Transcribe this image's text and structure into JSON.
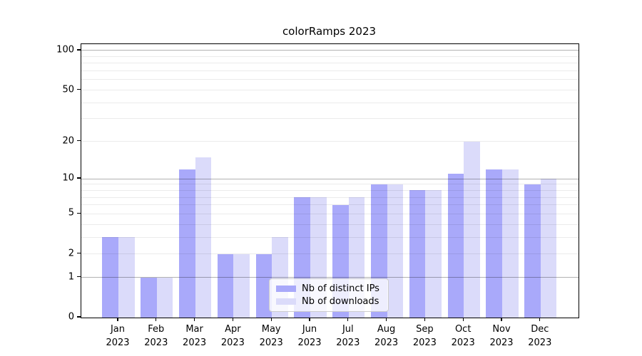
{
  "title": "colorRamps 2023",
  "legend": {
    "items": [
      {
        "label": "Nb of distinct IPs",
        "color": "#a9a9fa"
      },
      {
        "label": "Nb of downloads",
        "color": "#dbdbfa"
      }
    ],
    "position": "lower center"
  },
  "colors": {
    "series_ips": "#a9a9fa",
    "series_downloads": "#dbdbfa",
    "major_gridline": "rgba(0,0,0,0.30)",
    "minor_gridline": "rgba(0,0,0,0.08)",
    "spine": "#000000",
    "text": "#000000",
    "background": "#ffffff"
  },
  "chart_data": {
    "type": "bar",
    "title": "colorRamps 2023",
    "categories": [
      "Jan",
      "Feb",
      "Mar",
      "Apr",
      "May",
      "Jun",
      "Jul",
      "Aug",
      "Sep",
      "Oct",
      "Nov",
      "Dec"
    ],
    "category_year": "2023",
    "series": [
      {
        "name": "Nb of distinct IPs",
        "color": "#a9a9fa",
        "values": [
          3,
          1,
          12,
          2,
          2,
          7,
          6,
          9,
          8,
          11,
          12,
          9
        ]
      },
      {
        "name": "Nb of downloads",
        "color": "#dbdbfa",
        "values": [
          3,
          1,
          15,
          2,
          3,
          7,
          7,
          9,
          8,
          20,
          12,
          10
        ]
      }
    ],
    "xlabel": "",
    "ylabel": "",
    "y_axis": {
      "scale": "log10(value+1)",
      "tick_values": [
        0,
        1,
        2,
        5,
        10,
        20,
        50,
        100
      ],
      "major_gridlines": [
        1,
        10,
        100
      ],
      "minor_gridlines": [
        2,
        3,
        4,
        5,
        6,
        7,
        8,
        9,
        20,
        30,
        40,
        50,
        60,
        70,
        80,
        90
      ],
      "ylim_transformed": [
        0,
        2.052
      ]
    },
    "grid": "horizontal, drawn above bars",
    "legend_position": "lower center"
  }
}
